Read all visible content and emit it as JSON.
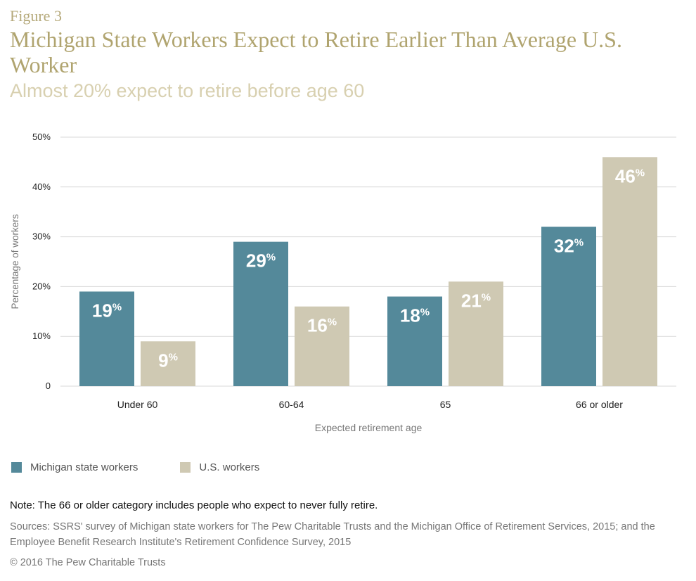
{
  "figure_label": "Figure 3",
  "title": "Michigan State Workers Expect to Retire Earlier Than Average U.S. Worker",
  "subtitle": "Almost 20% expect to retire before age 60",
  "note": "Note: The 66 or older category includes people who expect to never fully retire.",
  "sources": "Sources: SSRS' survey of Michigan state workers for The Pew Charitable Trusts and the Michigan Office of Retirement Services, 2015; and the Employee Benefit Research Institute's Retirement Confidence Survey, 2015",
  "copyright": "© 2016 The Pew Charitable Trusts",
  "colors": {
    "michigan": "#54899a",
    "us": "#cfc9b3",
    "grid": "#d9d9d9",
    "title": "#b0a46f"
  },
  "chart_data": {
    "type": "bar",
    "categories": [
      "Under 60",
      "60-64",
      "65",
      "66 or older"
    ],
    "series": [
      {
        "name": "Michigan state workers",
        "values": [
          19,
          29,
          18,
          32
        ]
      },
      {
        "name": "U.S. workers",
        "values": [
          9,
          16,
          21,
          46
        ]
      }
    ],
    "data_labels": [
      [
        "19",
        "29",
        "18",
        "32"
      ],
      [
        "9",
        "16",
        "21",
        "46"
      ]
    ],
    "data_label_suffix": "%",
    "xlabel": "Expected retirement age",
    "ylabel": "Percentage of workers",
    "ylim": [
      0,
      50
    ],
    "yticks": [
      0,
      10,
      20,
      30,
      40,
      50
    ],
    "ytick_labels": [
      "0",
      "10%",
      "20%",
      "30%",
      "40%",
      "50%"
    ],
    "grid": true,
    "legend_position": "bottom-left"
  }
}
